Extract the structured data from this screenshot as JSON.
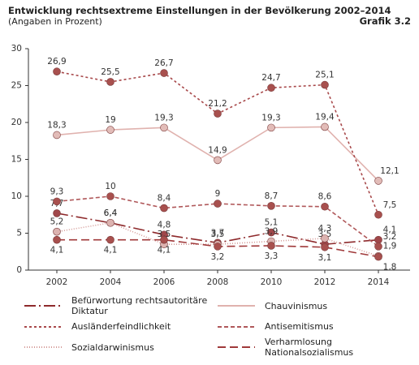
{
  "chart_data": {
    "type": "line",
    "title": "Entwicklung rechtsextreme Einstellungen in der Bevölkerung 2002–2014",
    "subtitle": "(Angaben in Prozent)",
    "label": "Grafik 3.2",
    "categories": [
      "2002",
      "2004",
      "2006",
      "2008",
      "2010",
      "2012",
      "2014"
    ],
    "ylim": [
      0,
      30
    ],
    "yticks": [
      0,
      5,
      10,
      15,
      20,
      25,
      30
    ],
    "grid": false,
    "series": [
      {
        "name": "Befürwortung rechtsautoritäre Diktatur",
        "color": "#8e2a2c",
        "marker_color": "#a0474a",
        "line_style": "14,4,2,4",
        "values": [
          7.7,
          6.4,
          4.8,
          3.7,
          5.1,
          3.5,
          4.1
        ],
        "value_labels": [
          "7,7",
          "6,4",
          "4,8",
          "3,7",
          "5,1",
          "3,5",
          "4,1"
        ]
      },
      {
        "name": "Chauvinismus",
        "color": "#e0b2ae",
        "marker_color": "#e2bcb8",
        "line_style": "",
        "values": [
          18.3,
          19,
          19.3,
          14.9,
          19.3,
          19.4,
          12.1
        ],
        "value_labels": [
          "18,3",
          "19",
          "19,3",
          "14,9",
          "19,3",
          "19,4",
          "12,1"
        ]
      },
      {
        "name": "Ausländerfeindlichkeit",
        "color": "#a8494b",
        "marker_color": "#a8504e",
        "line_style": "3,3",
        "values": [
          26.9,
          25.5,
          26.7,
          21.2,
          24.7,
          25.1,
          7.5
        ],
        "value_labels": [
          "26,9",
          "25,5",
          "26,7",
          "21,2",
          "24,7",
          "25,1",
          "7,5"
        ]
      },
      {
        "name": "Antisemitismus",
        "color": "#b0585a",
        "marker_color": "#a8504e",
        "line_style": "5,3",
        "values": [
          9.3,
          10,
          8.4,
          9,
          8.7,
          8.6,
          3.2
        ],
        "value_labels": [
          "9,3",
          "10",
          "8,4",
          "9",
          "8,7",
          "8,6",
          "3,2"
        ]
      },
      {
        "name": "Sozialdarwinismus",
        "color": "#d49a97",
        "marker_color": "#dcb3b0",
        "line_style": "1,2",
        "values": [
          5.2,
          6.4,
          3.5,
          3.5,
          3.9,
          4.3,
          1.9
        ],
        "value_labels": [
          "5,2",
          "6,4",
          "3,5",
          "3,5",
          "3,9",
          "4,3",
          "1,9"
        ]
      },
      {
        "name": "Verharmlosung Nationalsozialismus",
        "color": "#a0393a",
        "marker_color": "#a8504e",
        "line_style": "10,5",
        "values": [
          4.1,
          4.1,
          4.1,
          3.2,
          3.3,
          3.1,
          1.8
        ],
        "value_labels": [
          "4,1",
          "4,1",
          "4,1",
          "3,2",
          "3,3",
          "3,1",
          "1,8"
        ]
      }
    ]
  }
}
